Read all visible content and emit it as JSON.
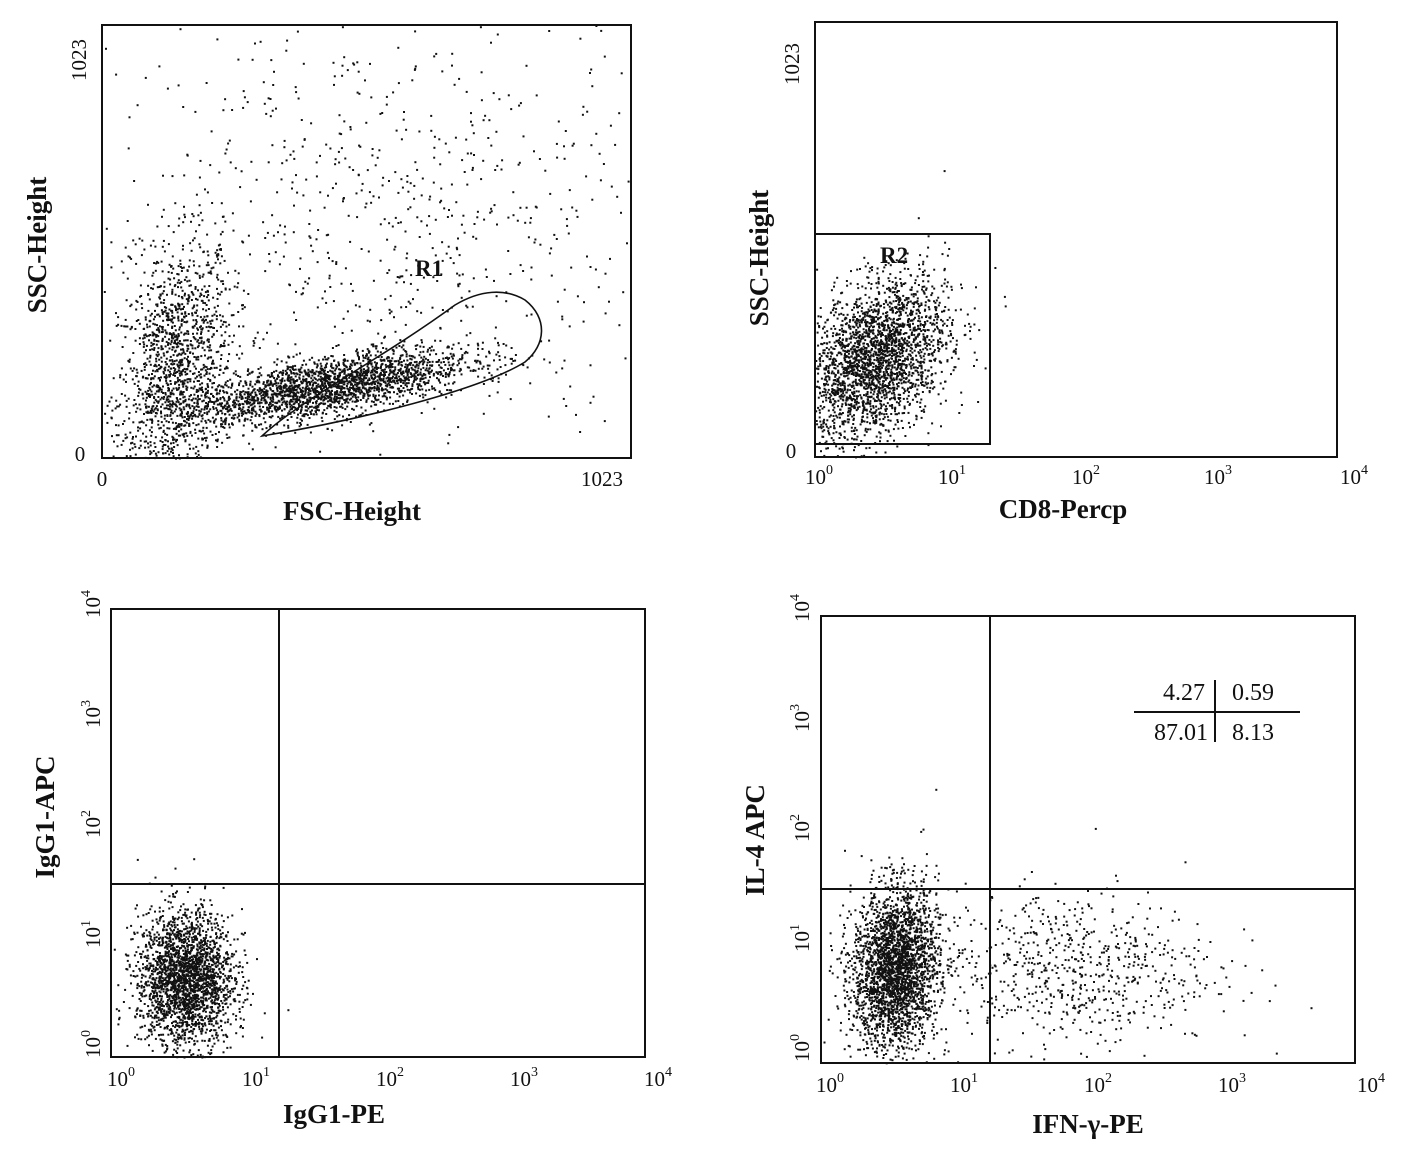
{
  "chart_data": [
    {
      "type": "scatter",
      "x_scale": "linear",
      "y_scale": "linear",
      "xlabel": "FSC-Height",
      "ylabel": "SSC-Height",
      "xlim": [
        0,
        1023
      ],
      "ylim": [
        0,
        1023
      ],
      "x_ticks": [
        {
          "value": 0,
          "label": "0"
        },
        {
          "value": 1023,
          "label": "1023"
        }
      ],
      "y_ticks": [
        {
          "value": 0,
          "label": "0"
        },
        {
          "value": 1023,
          "label": "1023"
        }
      ],
      "gate": {
        "label": "R1",
        "shape": "polygon"
      },
      "populations": [
        {
          "cx": 140,
          "cy": 210,
          "sx": 55,
          "sy": 150,
          "n": 1400,
          "rho": 0.25
        },
        {
          "cx": 430,
          "cy": 170,
          "sx": 140,
          "sy": 45,
          "n": 2300,
          "rho": 0.65
        },
        {
          "cx": 560,
          "cy": 560,
          "sx": 300,
          "sy": 260,
          "n": 800,
          "rho": 0.0
        }
      ]
    },
    {
      "type": "scatter",
      "x_scale": "log",
      "y_scale": "linear",
      "xlabel": "CD8-Percp",
      "ylabel": "SSC-Height",
      "xlim": [
        1,
        10000
      ],
      "ylim": [
        0,
        1023
      ],
      "x_ticks": [
        {
          "value": 1,
          "base": "10",
          "exp": "0"
        },
        {
          "value": 10,
          "base": "10",
          "exp": "1"
        },
        {
          "value": 100,
          "base": "10",
          "exp": "2"
        },
        {
          "value": 1000,
          "base": "10",
          "exp": "3"
        },
        {
          "value": 10000,
          "base": "10",
          "exp": "4"
        }
      ],
      "y_ticks": [
        {
          "value": 0,
          "label": "0"
        },
        {
          "value": 1023,
          "label": "1023"
        }
      ],
      "gate": {
        "label": "R2",
        "shape": "rectangle",
        "x": [
          1,
          15
        ],
        "y": [
          20,
          500
        ]
      },
      "populations": [
        {
          "cx_log": 0.45,
          "cy": 230,
          "sx_log": 0.28,
          "sy": 95,
          "n": 2600,
          "rho": 0.35
        }
      ]
    },
    {
      "type": "scatter",
      "x_scale": "log",
      "y_scale": "log",
      "xlabel": "IgG1-PE",
      "ylabel": "IgG1-APC",
      "xlim": [
        1,
        10000
      ],
      "ylim": [
        1,
        10000
      ],
      "x_ticks": [
        {
          "value": 1,
          "base": "10",
          "exp": "0"
        },
        {
          "value": 10,
          "base": "10",
          "exp": "1"
        },
        {
          "value": 100,
          "base": "10",
          "exp": "2"
        },
        {
          "value": 1000,
          "base": "10",
          "exp": "3"
        },
        {
          "value": 10000,
          "base": "10",
          "exp": "4"
        }
      ],
      "y_ticks": [
        {
          "value": 1,
          "base": "10",
          "exp": "0"
        },
        {
          "value": 10,
          "base": "10",
          "exp": "1"
        },
        {
          "value": 100,
          "base": "10",
          "exp": "2"
        },
        {
          "value": 1000,
          "base": "10",
          "exp": "3"
        },
        {
          "value": 10000,
          "base": "10",
          "exp": "4"
        }
      ],
      "quadrant_divider": {
        "x": 13,
        "y": 25
      },
      "populations": [
        {
          "cx_log": 0.55,
          "cy_log": 0.7,
          "sx_log": 0.18,
          "sy_log": 0.3,
          "n": 2400,
          "rho": 0.0
        }
      ]
    },
    {
      "type": "scatter",
      "x_scale": "log",
      "y_scale": "log",
      "xlabel": "IFN-γ-PE",
      "ylabel": "IL-4 APC",
      "xlim": [
        1,
        10000
      ],
      "ylim": [
        1,
        10000
      ],
      "x_ticks": [
        {
          "value": 1,
          "base": "10",
          "exp": "0"
        },
        {
          "value": 10,
          "base": "10",
          "exp": "1"
        },
        {
          "value": 100,
          "base": "10",
          "exp": "2"
        },
        {
          "value": 1000,
          "base": "10",
          "exp": "3"
        },
        {
          "value": 10000,
          "base": "10",
          "exp": "4"
        }
      ],
      "y_ticks": [
        {
          "value": 1,
          "base": "10",
          "exp": "0"
        },
        {
          "value": 10,
          "base": "10",
          "exp": "1"
        },
        {
          "value": 100,
          "base": "10",
          "exp": "2"
        },
        {
          "value": 1000,
          "base": "10",
          "exp": "3"
        },
        {
          "value": 10000,
          "base": "10",
          "exp": "4"
        }
      ],
      "quadrant_divider": {
        "x": 13,
        "y": 25
      },
      "quadrant_percentages": {
        "upper_left": "4.27",
        "upper_right": "0.59",
        "lower_left": "87.01",
        "lower_right": "8.13"
      },
      "populations": [
        {
          "cx_log": 0.55,
          "cy_log": 0.85,
          "sx_log": 0.16,
          "sy_log": 0.36,
          "n": 2700,
          "rho": 0.1
        },
        {
          "cx_log": 1.85,
          "cy_log": 0.85,
          "sx_log": 0.55,
          "sy_log": 0.35,
          "n": 700,
          "rho": 0.0
        }
      ]
    }
  ]
}
